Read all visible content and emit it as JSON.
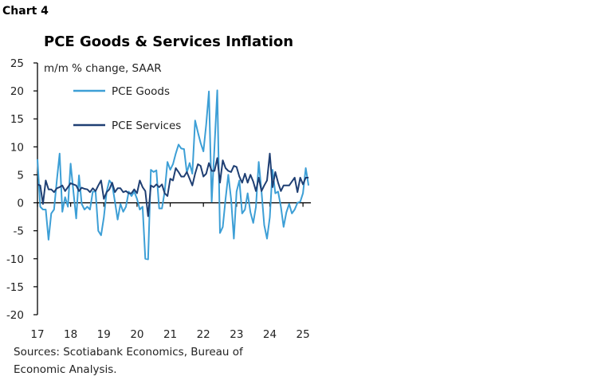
{
  "chart_number": "Chart 4",
  "chart_data": {
    "type": "line",
    "title": "PCE Goods & Services Inflation",
    "ylabel": "m/m % change, SAAR",
    "xlabel": "",
    "ylim": [
      -20,
      25
    ],
    "yticks": [
      25,
      20,
      15,
      10,
      5,
      0,
      -5,
      -10,
      -15,
      -20
    ],
    "xticks": [
      "17",
      "18",
      "19",
      "20",
      "21",
      "22",
      "23",
      "24",
      "25"
    ],
    "x_start": "2017-01",
    "x_end": "2025-03",
    "frequency": "monthly",
    "grid": false,
    "legend_position": "top-left",
    "series": [
      {
        "name": "PCE Goods",
        "color": "#3d9fd6",
        "values": [
          7.8,
          -0.7,
          -1.2,
          -1.2,
          -6.6,
          -1.9,
          -1.2,
          4,
          8.8,
          -1.6,
          1,
          -0.7,
          7,
          2,
          -2.8,
          4.9,
          -0.2,
          -1.2,
          -0.7,
          -1.2,
          2,
          2,
          -5,
          -5.8,
          -2.6,
          2,
          4,
          3.3,
          0.2,
          -3,
          -0.2,
          -1.6,
          -0.7,
          2,
          1.2,
          2,
          0.7,
          -1.2,
          -0.7,
          -10,
          -10.1,
          5.9,
          5.5,
          5.8,
          -1,
          -1,
          2,
          7.3,
          5.9,
          6.9,
          8.8,
          10.4,
          9.7,
          9.6,
          5.4,
          7.1,
          5.2,
          14.7,
          12.6,
          10.7,
          9.2,
          14,
          19.9,
          0.2,
          10,
          20.1,
          -5.4,
          -4.3,
          0.7,
          5,
          0.7,
          -6.4,
          2,
          4,
          -1.9,
          -1.2,
          1.7,
          -1.7,
          -3.6,
          -0.7,
          7.3,
          2,
          -4,
          -6.4,
          -2.6,
          5.9,
          1.7,
          2,
          -0.7,
          -4.3,
          -1.7,
          -0.2,
          -1.9,
          -1.2,
          0,
          0.2,
          1.7,
          6.2,
          3.1
        ]
      },
      {
        "name": "PCE Services",
        "color": "#1f3f73",
        "values": [
          3.3,
          3.1,
          -0.2,
          4,
          2.4,
          2.4,
          1.9,
          2.6,
          2.8,
          3.1,
          2.1,
          2.8,
          3.5,
          3.3,
          3.1,
          2.1,
          2.7,
          2.5,
          2.4,
          1.9,
          2.6,
          2.1,
          3.1,
          4,
          0.7,
          1.9,
          2.4,
          3.6,
          1.9,
          2.6,
          2.6,
          1.9,
          2.1,
          1.7,
          1.7,
          2.4,
          1.7,
          4,
          2.8,
          2.1,
          -2.4,
          3.1,
          2.8,
          3.3,
          2.8,
          3.3,
          1.7,
          1.2,
          4.3,
          4,
          6.2,
          5.5,
          4.7,
          4.7,
          5.5,
          4.3,
          3.1,
          5.2,
          6.9,
          6.6,
          4.7,
          5.2,
          7.1,
          5.7,
          5.7,
          8,
          3.6,
          7.6,
          6.2,
          5.7,
          5.5,
          6.6,
          6.4,
          4.7,
          3.6,
          5.2,
          3.6,
          5,
          3.8,
          2.1,
          4.5,
          2.1,
          3.1,
          4,
          8.8,
          2.8,
          5.5,
          3.6,
          2.1,
          3.1,
          3.1,
          3.1,
          3.8,
          4.5,
          1.9,
          4.5,
          3.3,
          4.5,
          4.5
        ]
      }
    ]
  },
  "source": "Sources: Scotiabank Economics, Bureau of Economic Analysis."
}
